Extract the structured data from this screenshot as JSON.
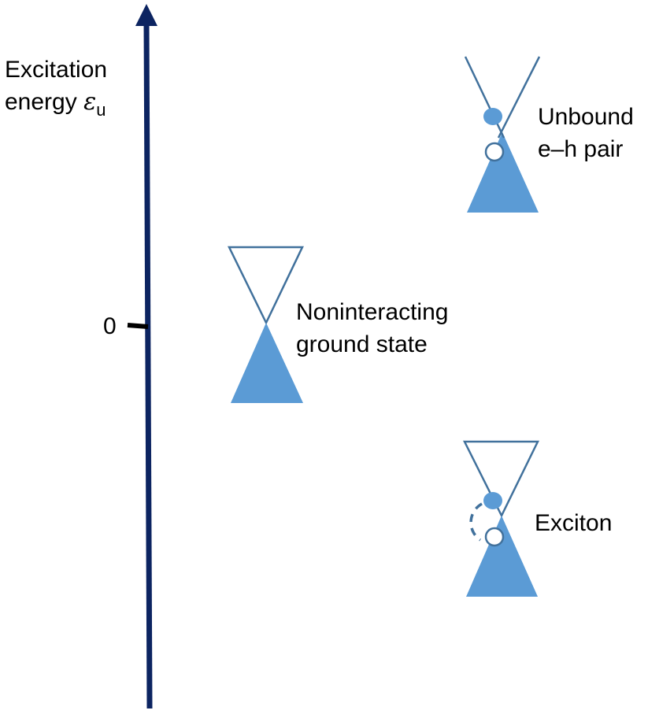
{
  "axis": {
    "label_line1": "Excitation",
    "label_line2": "energy",
    "label_symbol": "ε",
    "label_subscript": "u",
    "zero_tick_label": "0"
  },
  "states": {
    "ground": {
      "label_line1": "Noninteracting",
      "label_line2": "ground state"
    },
    "unbound": {
      "label_line1": "Unbound",
      "label_line2": "e–h pair"
    },
    "exciton": {
      "label": "Exciton"
    }
  },
  "colors": {
    "axis": "#0c2461",
    "cone_fill": "#5b9bd5",
    "cone_outline": "#41719c",
    "background": "#ffffff",
    "text": "#000000"
  }
}
